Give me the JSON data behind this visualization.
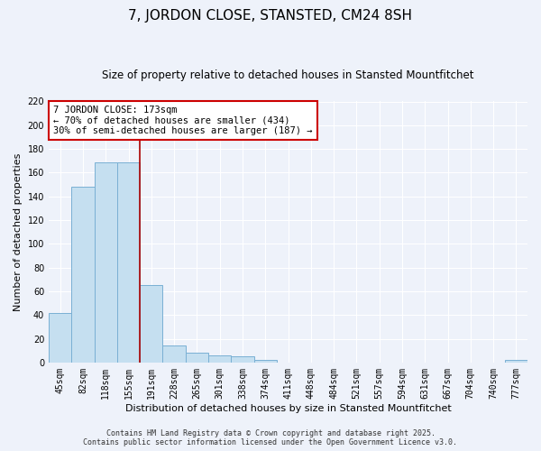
{
  "title": "7, JORDON CLOSE, STANSTED, CM24 8SH",
  "subtitle": "Size of property relative to detached houses in Stansted Mountfitchet",
  "xlabel": "Distribution of detached houses by size in Stansted Mountfitchet",
  "ylabel": "Number of detached properties",
  "bar_color": "#c5dff0",
  "bar_edge_color": "#7ab0d4",
  "background_color": "#eef2fa",
  "grid_color": "#ffffff",
  "bins": [
    "45sqm",
    "82sqm",
    "118sqm",
    "155sqm",
    "191sqm",
    "228sqm",
    "265sqm",
    "301sqm",
    "338sqm",
    "374sqm",
    "411sqm",
    "448sqm",
    "484sqm",
    "521sqm",
    "557sqm",
    "594sqm",
    "631sqm",
    "667sqm",
    "704sqm",
    "740sqm",
    "777sqm"
  ],
  "values": [
    42,
    148,
    169,
    169,
    65,
    14,
    8,
    6,
    5,
    2,
    0,
    0,
    0,
    0,
    0,
    0,
    0,
    0,
    0,
    0,
    2
  ],
  "ylim": [
    0,
    220
  ],
  "yticks": [
    0,
    20,
    40,
    60,
    80,
    100,
    120,
    140,
    160,
    180,
    200,
    220
  ],
  "vline_position": 3.5,
  "vline_color": "#aa0000",
  "annotation_line1": "7 JORDON CLOSE: 173sqm",
  "annotation_line2": "← 70% of detached houses are smaller (434)",
  "annotation_line3": "30% of semi-detached houses are larger (187) →",
  "footnote1": "Contains HM Land Registry data © Crown copyright and database right 2025.",
  "footnote2": "Contains public sector information licensed under the Open Government Licence v3.0.",
  "annotation_box_edge": "#cc0000",
  "title_fontsize": 11,
  "subtitle_fontsize": 8.5,
  "xlabel_fontsize": 8,
  "ylabel_fontsize": 8,
  "tick_fontsize": 7,
  "annotation_fontsize": 7.5,
  "footnote_fontsize": 6
}
